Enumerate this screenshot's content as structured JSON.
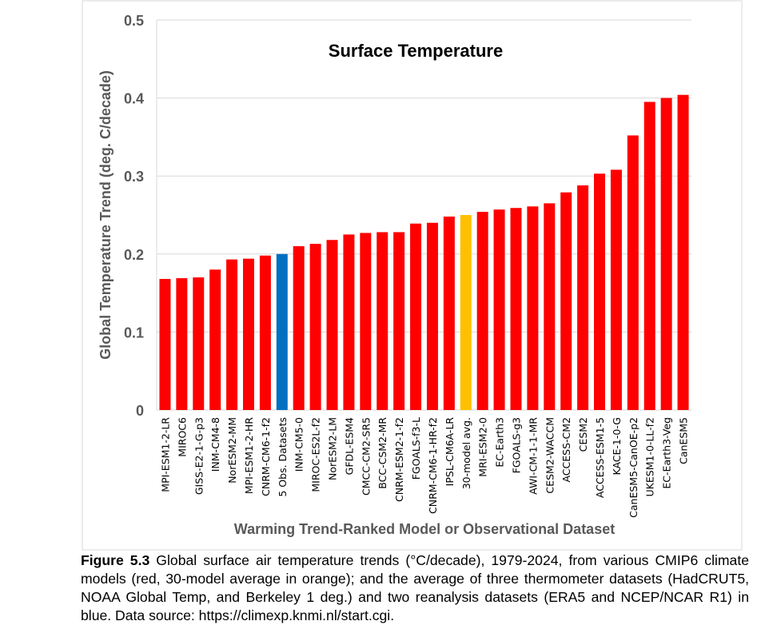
{
  "chart_data": {
    "type": "bar",
    "title": "Surface Temperature",
    "xlabel": "Warming Trend-Ranked Model or Observational Dataset",
    "ylabel": "Global Temperature Trend (deg. C/decade)",
    "ylim": [
      0,
      0.5
    ],
    "yticks": [
      "0",
      "0.1",
      "0.2",
      "0.3",
      "0.4",
      "0.5"
    ],
    "grid": true,
    "categories": [
      "MPI-ESM1-2-LR",
      "MIROC6",
      "GISS-E2-1-G-p3",
      "INM-CM4-8",
      "NorESM2-MM",
      "MPI-ESM1-2-HR",
      "CNRM-CM6-1-f2",
      "5 Obs. Datasets",
      "INM-CM5-0",
      "MIROC-ES2L-f2",
      "NorESM2-LM",
      "GFDL-ESM4",
      "CMCC-CM2-SR5",
      "BCC-CSM2-MR",
      "CNRM-ESM2-1-f2",
      "FGOALS-f3-L",
      "CNRM-CM6-1-HR-f2",
      "IPSL-CM6A-LR",
      "30-model avg.",
      "MRI-ESM2-0",
      "EC-Earth3",
      "FGOALS-g3",
      "AWI-CM-1-1-MR",
      "CESM2-WACCM",
      "ACCESS-CM2",
      "CESM2",
      "ACCESS-ESM1-5",
      "KACE-1-0-G",
      "CanESM5-CanOE-p2",
      "UKESM1-0-LL-f2",
      "EC-Earth3-Veg",
      "CanESM5"
    ],
    "values": [
      0.168,
      0.169,
      0.17,
      0.18,
      0.193,
      0.194,
      0.198,
      0.2,
      0.21,
      0.213,
      0.218,
      0.225,
      0.227,
      0.228,
      0.228,
      0.239,
      0.24,
      0.248,
      0.25,
      0.254,
      0.257,
      0.259,
      0.261,
      0.265,
      0.279,
      0.288,
      0.303,
      0.308,
      0.352,
      0.395,
      0.4,
      0.404
    ],
    "colors": {
      "model": "#ff0000",
      "observations": "#0070c0",
      "average": "#ffc000"
    },
    "kinds": [
      "m",
      "m",
      "m",
      "m",
      "m",
      "m",
      "m",
      "o",
      "m",
      "m",
      "m",
      "m",
      "m",
      "m",
      "m",
      "m",
      "m",
      "m",
      "a",
      "m",
      "m",
      "m",
      "m",
      "m",
      "m",
      "m",
      "m",
      "m",
      "m",
      "m",
      "m",
      "m"
    ]
  },
  "caption": {
    "label": "Figure 5.3",
    "text": " Global surface air temperature trends (°C/decade), 1979-2024, from various CMIP6 climate models (red, 30-model average in orange); and the average of three thermometer datasets (HadCRUT5, NOAA Global Temp, and Berkeley 1 deg.) and two reanalysis datasets (ERA5 and NCEP/NCAR R1) in blue. Data source: https://climexp.knmi.nl/start.cgi."
  }
}
